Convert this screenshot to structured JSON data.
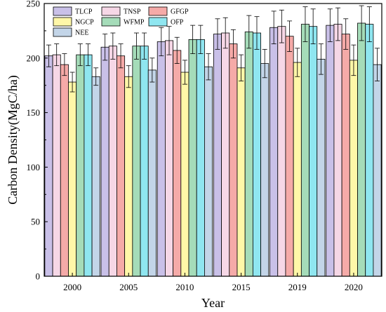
{
  "chart_data": {
    "type": "bar",
    "xlabel": "Year",
    "ylabel": "Carbon Density(MgC/ha)",
    "ylim": [
      0,
      250
    ],
    "yticks": [
      0,
      50,
      100,
      150,
      200,
      250
    ],
    "categories": [
      "2000",
      "2005",
      "2010",
      "2015",
      "2019",
      "2020"
    ],
    "legend_placement": "top-left",
    "error_bars": true,
    "series": [
      {
        "name": "TLCP",
        "color": "#c9c0e8",
        "values": [
          202,
          210,
          215,
          222,
          228,
          230
        ],
        "errors": [
          10,
          12,
          13,
          14,
          15,
          15
        ]
      },
      {
        "name": "TNSP",
        "color": "#f6d7e6",
        "values": [
          203,
          211,
          216,
          223,
          229,
          231
        ],
        "errors": [
          10,
          12,
          13,
          14,
          15,
          15
        ]
      },
      {
        "name": "GFGP",
        "color": "#f5aaa8",
        "values": [
          194,
          202,
          207,
          213,
          220,
          222
        ],
        "errors": [
          10,
          11,
          12,
          13,
          14,
          14
        ]
      },
      {
        "name": "NGCP",
        "color": "#fff7a8",
        "values": [
          178,
          183,
          187,
          191,
          196,
          198
        ],
        "errors": [
          9,
          10,
          11,
          12,
          13,
          14
        ]
      },
      {
        "name": "WFMP",
        "color": "#a5dcb9",
        "values": [
          203,
          211,
          217,
          224,
          231,
          232
        ],
        "errors": [
          10,
          12,
          13,
          15,
          16,
          16
        ]
      },
      {
        "name": "OFP",
        "color": "#8fe6f0",
        "values": [
          203,
          211,
          217,
          223,
          229,
          231
        ],
        "errors": [
          10,
          12,
          13,
          15,
          16,
          16
        ]
      },
      {
        "name": "NEE",
        "color": "#c3d5e8",
        "values": [
          183,
          189,
          192,
          195,
          199,
          194
        ],
        "errors": [
          8,
          11,
          12,
          13,
          14,
          15
        ]
      }
    ]
  }
}
